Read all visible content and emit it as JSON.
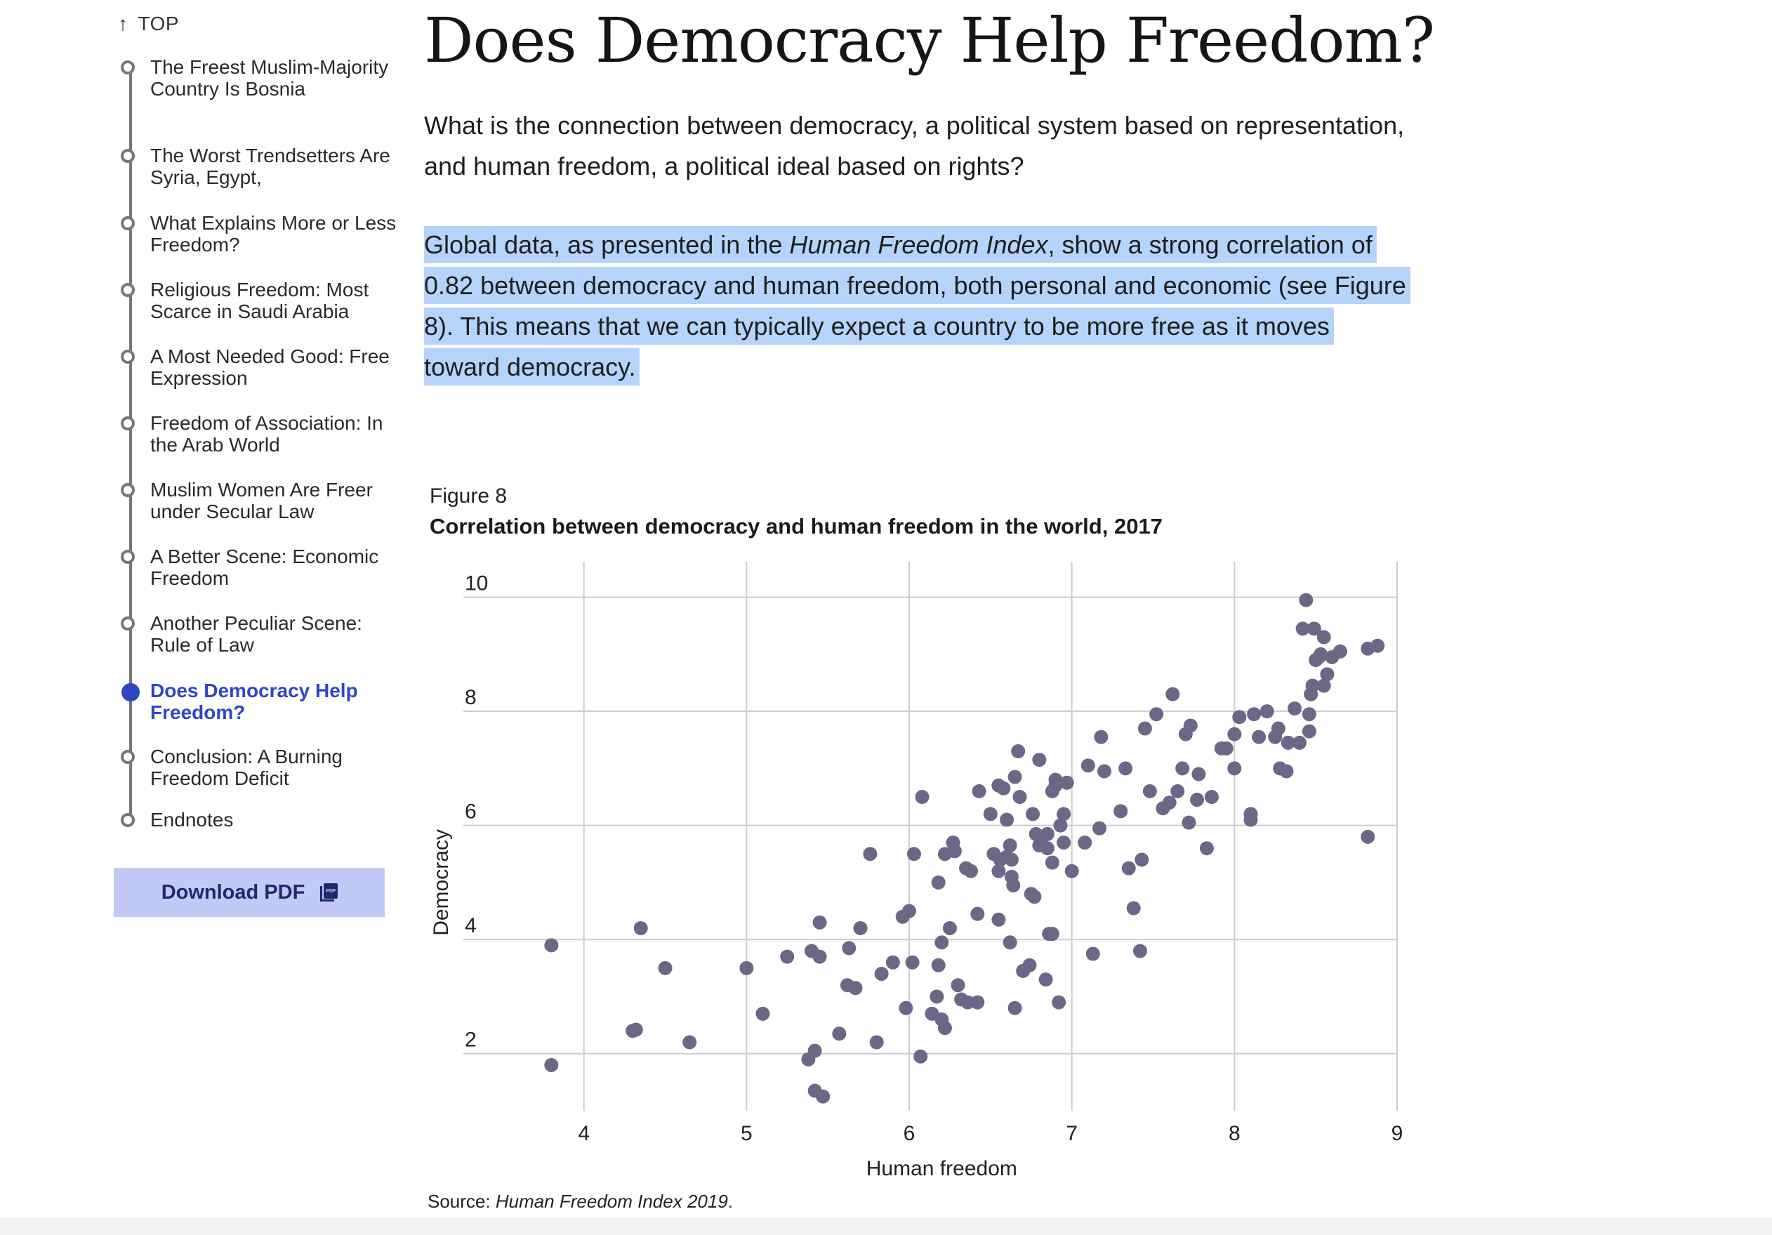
{
  "nav": {
    "top_label": "TOP",
    "items": [
      {
        "label": "The Freest Muslim-Majority Country Is Bosnia",
        "active": false
      },
      {
        "label": "The Worst Trendsetters Are Syria, Egypt,",
        "active": false
      },
      {
        "label": "What Explains More or Less Freedom?",
        "active": false
      },
      {
        "label": "Religious Freedom: Most Scarce in Saudi Arabia",
        "active": false
      },
      {
        "label": "A Most Needed Good: Free Expression",
        "active": false
      },
      {
        "label": "Freedom of Association: In the Arab World",
        "active": false
      },
      {
        "label": "Muslim Women Are Freer under Secular Law",
        "active": false
      },
      {
        "label": "A Better Scene: Economic Freedom",
        "active": false
      },
      {
        "label": "Another Peculiar Scene: Rule of Law",
        "active": false
      },
      {
        "label": "Does Democracy Help Freedom?",
        "active": true
      },
      {
        "label": "Conclusion: A Burning Freedom Deficit",
        "active": false
      },
      {
        "label": "Endnotes",
        "active": false
      }
    ],
    "download_label": "Download PDF",
    "download_icon": "pdf-icon"
  },
  "article": {
    "title": "Does Democracy Help Freedom?",
    "intro": "What is the connection between democracy, a political system based on representation, and human freedom, a political ideal based on rights?",
    "para_before_italic": "Global data, as presented in the ",
    "para_italic": "Human Freedom Index",
    "para_after_italic": ", show a strong correlation of 0.82 between democracy and human freedom, both personal and economic (see Figure 8). This means that we can typically expect a country to be more free as it moves toward democracy."
  },
  "figure": {
    "label": "Figure 8",
    "title": "Correlation between democracy and human freedom in the world, 2017",
    "source_prefix": "Source: ",
    "source_italic": "Human Freedom Index 2019",
    "source_suffix": "."
  },
  "colors": {
    "accent": "#2f45c8",
    "highlight": "#b6d4fb",
    "button_bg": "#c3c9f7",
    "dot": "#6c6787",
    "grid": "#cccccc"
  },
  "chart_data": {
    "type": "scatter",
    "title": "Correlation between democracy and human freedom in the world, 2017",
    "xlabel": "Human freedom",
    "ylabel": "Democracy",
    "xlim": [
      3.0,
      9.0
    ],
    "ylim": [
      1.0,
      10.5
    ],
    "xticks": [
      4,
      5,
      6,
      7,
      8,
      9
    ],
    "yticks": [
      2,
      4,
      6,
      8,
      10
    ],
    "grid": true,
    "series": [
      {
        "points": [
          [
            3.8,
            3.9
          ],
          [
            3.8,
            1.8
          ],
          [
            4.3,
            2.4
          ],
          [
            4.32,
            2.42
          ],
          [
            4.35,
            4.2
          ],
          [
            4.5,
            3.5
          ],
          [
            4.65,
            2.2
          ],
          [
            5.0,
            3.5
          ],
          [
            5.1,
            2.7
          ],
          [
            5.25,
            3.7
          ],
          [
            5.4,
            3.8
          ],
          [
            5.45,
            3.7
          ],
          [
            5.45,
            4.3
          ],
          [
            5.38,
            1.9
          ],
          [
            5.42,
            2.05
          ],
          [
            5.42,
            1.35
          ],
          [
            5.47,
            1.25
          ],
          [
            5.57,
            2.35
          ],
          [
            5.62,
            3.2
          ],
          [
            5.67,
            3.15
          ],
          [
            5.63,
            3.85
          ],
          [
            5.7,
            4.2
          ],
          [
            5.8,
            2.2
          ],
          [
            5.83,
            3.4
          ],
          [
            5.9,
            3.6
          ],
          [
            5.76,
            5.5
          ],
          [
            5.96,
            4.4
          ],
          [
            6.0,
            4.5
          ],
          [
            6.02,
            3.6
          ],
          [
            5.98,
            2.8
          ],
          [
            6.03,
            5.5
          ],
          [
            6.07,
            1.95
          ],
          [
            6.08,
            6.5
          ],
          [
            6.14,
            2.7
          ],
          [
            6.17,
            3.0
          ],
          [
            6.2,
            2.6
          ],
          [
            6.22,
            2.45
          ],
          [
            6.18,
            3.55
          ],
          [
            6.18,
            5.0
          ],
          [
            6.2,
            3.95
          ],
          [
            6.22,
            5.5
          ],
          [
            6.25,
            4.2
          ],
          [
            6.28,
            5.55
          ],
          [
            6.27,
            5.7
          ],
          [
            6.3,
            3.2
          ],
          [
            6.32,
            2.95
          ],
          [
            6.36,
            2.9
          ],
          [
            6.35,
            5.25
          ],
          [
            6.38,
            5.2
          ],
          [
            6.42,
            4.45
          ],
          [
            6.42,
            2.9
          ],
          [
            6.43,
            6.6
          ],
          [
            6.5,
            6.2
          ],
          [
            6.52,
            5.5
          ],
          [
            6.55,
            5.2
          ],
          [
            6.55,
            6.7
          ],
          [
            6.58,
            6.65
          ],
          [
            6.6,
            6.1
          ],
          [
            6.56,
            5.4
          ],
          [
            6.55,
            4.35
          ],
          [
            6.6,
            5.45
          ],
          [
            6.62,
            3.95
          ],
          [
            6.63,
            5.1
          ],
          [
            6.63,
            5.4
          ],
          [
            6.64,
            4.95
          ],
          [
            6.62,
            5.65
          ],
          [
            6.65,
            2.8
          ],
          [
            6.65,
            6.85
          ],
          [
            6.67,
            7.3
          ],
          [
            6.68,
            6.5
          ],
          [
            6.7,
            3.45
          ],
          [
            6.74,
            3.55
          ],
          [
            6.75,
            4.8
          ],
          [
            6.77,
            4.75
          ],
          [
            6.76,
            6.2
          ],
          [
            6.78,
            5.85
          ],
          [
            6.8,
            7.15
          ],
          [
            6.8,
            5.65
          ],
          [
            6.82,
            5.65
          ],
          [
            6.85,
            5.85
          ],
          [
            6.85,
            5.6
          ],
          [
            6.84,
            3.3
          ],
          [
            6.88,
            6.6
          ],
          [
            6.88,
            5.35
          ],
          [
            6.88,
            4.1
          ],
          [
            6.86,
            4.1
          ],
          [
            6.9,
            6.7
          ],
          [
            6.9,
            6.8
          ],
          [
            6.93,
            6.0
          ],
          [
            6.95,
            6.2
          ],
          [
            6.95,
            5.7
          ],
          [
            6.97,
            6.75
          ],
          [
            6.92,
            2.9
          ],
          [
            7.0,
            5.2
          ],
          [
            7.08,
            5.7
          ],
          [
            7.1,
            7.05
          ],
          [
            7.13,
            3.75
          ],
          [
            7.17,
            5.95
          ],
          [
            7.18,
            7.55
          ],
          [
            7.2,
            6.95
          ],
          [
            7.3,
            6.25
          ],
          [
            7.33,
            7.0
          ],
          [
            7.35,
            5.25
          ],
          [
            7.38,
            4.55
          ],
          [
            7.42,
            3.8
          ],
          [
            7.43,
            5.4
          ],
          [
            7.45,
            7.7
          ],
          [
            7.48,
            6.6
          ],
          [
            7.52,
            7.95
          ],
          [
            7.56,
            6.3
          ],
          [
            7.6,
            6.4
          ],
          [
            7.62,
            8.3
          ],
          [
            7.65,
            6.6
          ],
          [
            7.68,
            7.0
          ],
          [
            7.7,
            7.6
          ],
          [
            7.73,
            7.75
          ],
          [
            7.72,
            6.05
          ],
          [
            7.77,
            6.45
          ],
          [
            7.78,
            6.9
          ],
          [
            7.83,
            5.6
          ],
          [
            7.86,
            6.5
          ],
          [
            7.92,
            7.35
          ],
          [
            7.95,
            7.35
          ],
          [
            8.0,
            7.0
          ],
          [
            8.0,
            7.6
          ],
          [
            8.03,
            7.9
          ],
          [
            8.1,
            6.2
          ],
          [
            8.1,
            6.1
          ],
          [
            8.12,
            7.95
          ],
          [
            8.15,
            7.55
          ],
          [
            8.2,
            8.0
          ],
          [
            8.25,
            7.55
          ],
          [
            8.27,
            7.7
          ],
          [
            8.28,
            7.0
          ],
          [
            8.32,
            6.95
          ],
          [
            8.33,
            7.45
          ],
          [
            8.37,
            8.05
          ],
          [
            8.4,
            7.45
          ],
          [
            8.42,
            9.45
          ],
          [
            8.44,
            9.95
          ],
          [
            8.46,
            7.95
          ],
          [
            8.46,
            7.65
          ],
          [
            8.47,
            8.3
          ],
          [
            8.49,
            9.45
          ],
          [
            8.48,
            8.45
          ],
          [
            8.5,
            8.9
          ],
          [
            8.52,
            8.95
          ],
          [
            8.53,
            9.0
          ],
          [
            8.55,
            8.45
          ],
          [
            8.55,
            9.3
          ],
          [
            8.57,
            8.65
          ],
          [
            8.6,
            8.95
          ],
          [
            8.65,
            9.05
          ],
          [
            8.82,
            9.1
          ],
          [
            8.88,
            9.15
          ],
          [
            8.82,
            5.8
          ]
        ]
      }
    ]
  }
}
